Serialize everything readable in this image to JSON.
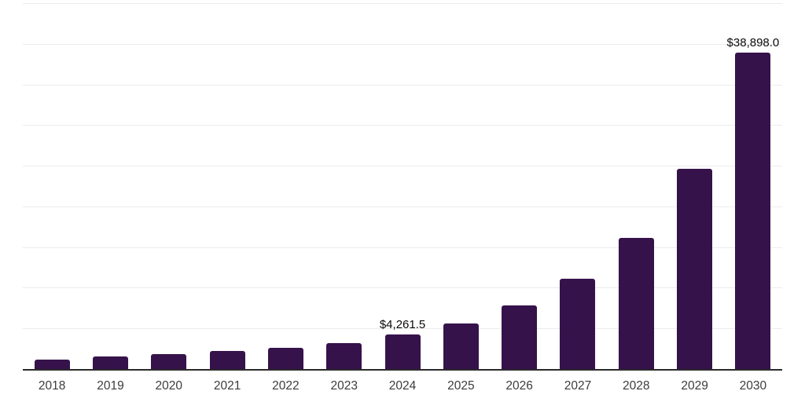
{
  "chart_data": {
    "type": "bar",
    "title": "",
    "xlabel": "",
    "ylabel": "",
    "categories": [
      "2018",
      "2019",
      "2020",
      "2021",
      "2022",
      "2023",
      "2024",
      "2025",
      "2026",
      "2027",
      "2028",
      "2029",
      "2030"
    ],
    "values": [
      1200,
      1570,
      1800,
      2250,
      2600,
      3210,
      4261.5,
      5600,
      7800,
      11100,
      16150,
      24600,
      38898
    ],
    "data_labels": {
      "2024": "$4,261.5",
      "2030": "$38,898.0"
    },
    "ylim": [
      0,
      45000
    ],
    "gridline_step": 5000,
    "grid": true,
    "legend": "none",
    "colors": {
      "bar": "#36124B",
      "axis": "#2a2a2a",
      "gridline": "#ececec",
      "tick_label": "#3c3c3c",
      "value_label": "#0a0a0a",
      "background": "#ffffff"
    }
  }
}
